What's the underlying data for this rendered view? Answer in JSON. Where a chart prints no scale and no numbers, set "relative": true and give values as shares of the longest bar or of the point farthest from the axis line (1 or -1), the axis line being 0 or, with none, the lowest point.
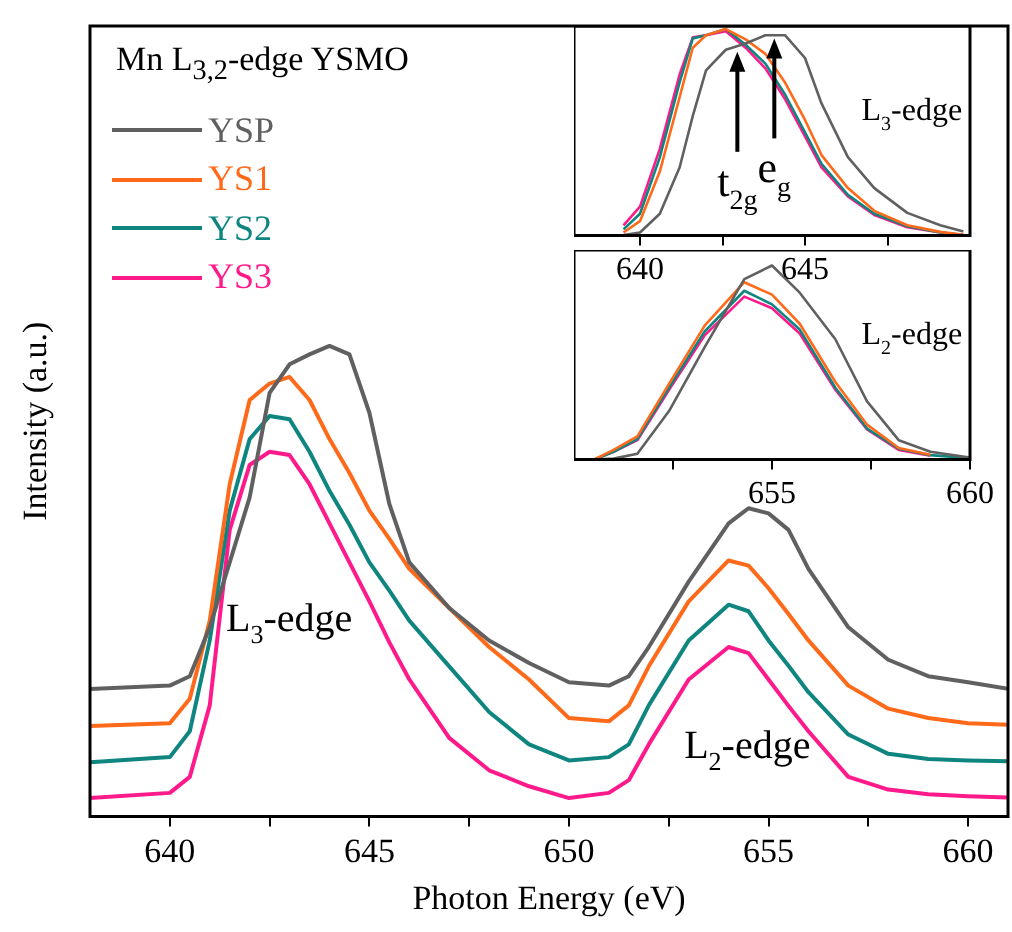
{
  "chart_data": [
    {
      "type": "line",
      "title": "Mn L$_{3,2}$-edge YSMO",
      "xlabel": "Photon Energy (eV)",
      "ylabel": "Intensity (a.u.)",
      "relative": true,
      "legend": "top left",
      "xlim": [
        638,
        661
      ],
      "xticks": [
        640,
        {
          "value": 642.5,
          "label": null
        },
        645,
        {
          "value": 647.5,
          "label": null
        },
        650,
        {
          "value": 652.5,
          "label": null
        },
        655,
        {
          "value": 657.5,
          "label": null
        },
        660
      ],
      "x": [
        638,
        640,
        640.5,
        641,
        641.5,
        642,
        642.5,
        643,
        643.5,
        644,
        644.5,
        645,
        645.5,
        646,
        647,
        648,
        649,
        650,
        651,
        651.5,
        652,
        653,
        654,
        654.5,
        655,
        655.5,
        656,
        657,
        658,
        659,
        660,
        661
      ],
      "series": [
        {
          "name": "YSP",
          "color": "#606060",
          "values": [
            0.271,
            0.278,
            0.298,
            0.402,
            0.54,
            0.678,
            0.9,
            0.961,
            0.982,
            1.0,
            0.982,
            0.858,
            0.664,
            0.54,
            0.443,
            0.374,
            0.326,
            0.285,
            0.278,
            0.298,
            0.36,
            0.499,
            0.623,
            0.655,
            0.644,
            0.609,
            0.526,
            0.402,
            0.333,
            0.298,
            0.285,
            0.271
          ]
        },
        {
          "name": "YS1",
          "color": "#ff6a1a",
          "values": [
            0.192,
            0.198,
            0.25,
            0.416,
            0.706,
            0.885,
            0.92,
            0.934,
            0.885,
            0.802,
            0.73,
            0.65,
            0.59,
            0.526,
            0.443,
            0.36,
            0.291,
            0.209,
            0.202,
            0.236,
            0.319,
            0.457,
            0.544,
            0.533,
            0.485,
            0.43,
            0.374,
            0.278,
            0.229,
            0.209,
            0.198,
            0.195
          ]
        },
        {
          "name": "YS2",
          "color": "#0f8580",
          "values": [
            0.115,
            0.126,
            0.181,
            0.374,
            0.65,
            0.802,
            0.851,
            0.844,
            0.775,
            0.692,
            0.62,
            0.54,
            0.48,
            0.416,
            0.319,
            0.222,
            0.153,
            0.119,
            0.126,
            0.153,
            0.236,
            0.374,
            0.45,
            0.436,
            0.374,
            0.32,
            0.264,
            0.174,
            0.133,
            0.122,
            0.119,
            0.117
          ]
        },
        {
          "name": "YS3",
          "color": "#ff1a8c",
          "values": [
            0.039,
            0.05,
            0.084,
            0.236,
            0.609,
            0.747,
            0.775,
            0.768,
            0.706,
            0.623,
            0.54,
            0.457,
            0.37,
            0.291,
            0.167,
            0.098,
            0.064,
            0.039,
            0.05,
            0.077,
            0.153,
            0.291,
            0.36,
            0.347,
            0.291,
            0.235,
            0.181,
            0.084,
            0.057,
            0.047,
            0.043,
            0.04
          ]
        }
      ],
      "annotations": [
        "L$_{3}$-edge",
        "L$_{2}$-edge"
      ]
    },
    {
      "type": "line",
      "relative": true,
      "xlim": [
        638,
        650
      ],
      "xticks": [
        640,
        {
          "value": 642.5,
          "label": null
        },
        645,
        {
          "value": 647.5,
          "label": null
        }
      ],
      "x": [
        639.5,
        640,
        640.6,
        641.2,
        641.6,
        642,
        642.6,
        643.2,
        643.8,
        644.4,
        645,
        645.5,
        646.3,
        647.1,
        648.1,
        649.1,
        649.8
      ],
      "series": [
        {
          "color": "#606060",
          "values": [
            0.003,
            0.015,
            0.106,
            0.33,
            0.58,
            0.8,
            0.9,
            0.93,
            0.97,
            0.97,
            0.86,
            0.64,
            0.38,
            0.23,
            0.11,
            0.05,
            0.02
          ]
        },
        {
          "color": "#ff6a1a",
          "values": [
            0.015,
            0.07,
            0.31,
            0.67,
            0.91,
            0.97,
            1.0,
            0.95,
            0.88,
            0.74,
            0.56,
            0.39,
            0.23,
            0.12,
            0.05,
            0.018,
            0.004
          ]
        },
        {
          "color": "#0f8580",
          "values": [
            0.03,
            0.106,
            0.379,
            0.742,
            0.955,
            0.97,
            1.0,
            0.924,
            0.833,
            0.682,
            0.5,
            0.348,
            0.197,
            0.106,
            0.045,
            0.015,
            0.003
          ]
        },
        {
          "color": "#ff1a8c",
          "values": [
            0.05,
            0.14,
            0.42,
            0.78,
            0.96,
            0.97,
            0.99,
            0.91,
            0.81,
            0.66,
            0.48,
            0.33,
            0.19,
            0.1,
            0.04,
            0.015,
            0.003
          ]
        }
      ],
      "annotations": [
        "L$_{3}$-edge",
        {
          "text": "t$_{2g}$",
          "x": 642.95,
          "y": 0.89
        },
        {
          "text": "e$_{g}$",
          "x": 644.07,
          "y": 0.955
        }
      ]
    },
    {
      "type": "line",
      "relative": true,
      "xlim": [
        650,
        660
      ],
      "xticks": [
        {
          "value": 652.5,
          "label": null
        },
        655,
        {
          "value": 657.5,
          "label": null
        },
        660
      ],
      "x": [
        650.5,
        651,
        651.6,
        652.4,
        653.3,
        654.3,
        655,
        655.7,
        656.6,
        657.4,
        658.2,
        659,
        660
      ],
      "series": [
        {
          "color": "#606060",
          "values": [
            0,
            0.005,
            0.03,
            0.25,
            0.58,
            0.93,
            1.0,
            0.86,
            0.62,
            0.3,
            0.1,
            0.04,
            0.01
          ]
        },
        {
          "color": "#ff6a1a",
          "values": [
            0,
            0.05,
            0.12,
            0.39,
            0.69,
            0.914,
            0.85,
            0.7,
            0.4,
            0.18,
            0.06,
            0.025,
            null
          ]
        },
        {
          "color": "#0f8580",
          "values": [
            0,
            0.04,
            0.106,
            0.37,
            0.66,
            0.87,
            0.8,
            0.67,
            0.37,
            0.16,
            0.056,
            0.023,
            0.007
          ]
        },
        {
          "color": "#ff1a8c",
          "values": [
            0,
            0.04,
            0.1,
            0.36,
            0.64,
            0.84,
            0.78,
            0.65,
            0.36,
            0.155,
            0.05,
            0.02,
            null
          ]
        }
      ],
      "annotations": [
        "L$_{2}$-edge"
      ]
    }
  ]
}
